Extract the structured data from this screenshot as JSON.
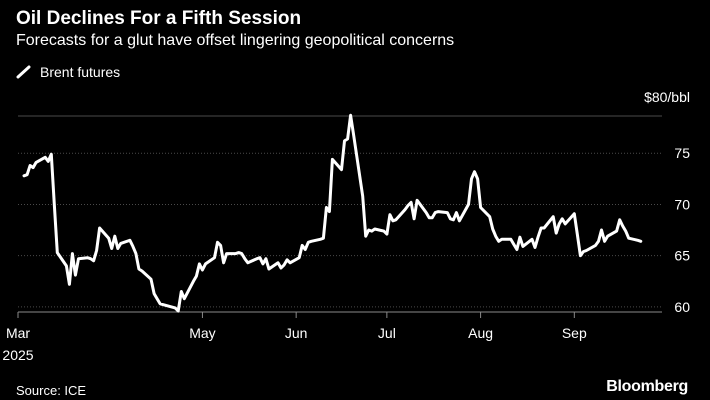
{
  "header": {
    "title": "Oil Declines For a Fifth Session",
    "subtitle": "Forecasts for a glut have offset lingering geopolitical concerns"
  },
  "footer": {
    "source": "Source: ICE",
    "brand": "Bloomberg"
  },
  "colors": {
    "background": "#000000",
    "line": "#ffffff",
    "grid": "#4a4a4a",
    "text": "#ffffff"
  },
  "chart_data": {
    "type": "line",
    "title": "Oil Declines For a Fifth Session",
    "subtitle": "Forecasts for a glut have offset lingering geopolitical concerns",
    "xlabel": "",
    "ylabel": "",
    "y_unit_label": "$80/bbl",
    "ylim": [
      59.5,
      80
    ],
    "yticks": [
      60,
      65,
      70,
      75
    ],
    "grid": true,
    "legend_position": "top-left",
    "x_axis": {
      "start": "2025-03-01",
      "end": "2025-09-30",
      "ticks": [
        {
          "date": "2025-03-01",
          "label": "Mar",
          "sublabel": "2025"
        },
        {
          "date": "2025-05-01",
          "label": "May"
        },
        {
          "date": "2025-06-01",
          "label": "Jun"
        },
        {
          "date": "2025-07-01",
          "label": "Jul"
        },
        {
          "date": "2025-08-01",
          "label": "Aug"
        },
        {
          "date": "2025-09-01",
          "label": "Sep"
        }
      ]
    },
    "series": [
      {
        "name": "Brent futures",
        "points": [
          [
            "2025-03-03",
            72.8
          ],
          [
            "2025-03-04",
            72.9
          ],
          [
            "2025-03-05",
            73.8
          ],
          [
            "2025-03-06",
            73.6
          ],
          [
            "2025-03-07",
            74.1
          ],
          [
            "2025-03-10",
            74.6
          ],
          [
            "2025-03-11",
            74.2
          ],
          [
            "2025-03-12",
            74.9
          ],
          [
            "2025-03-13",
            70.0
          ],
          [
            "2025-03-14",
            65.3
          ],
          [
            "2025-03-17",
            64.0
          ],
          [
            "2025-03-18",
            62.2
          ],
          [
            "2025-03-19",
            65.2
          ],
          [
            "2025-03-20",
            63.1
          ],
          [
            "2025-03-21",
            64.7
          ],
          [
            "2025-03-24",
            64.8
          ],
          [
            "2025-03-25",
            64.7
          ],
          [
            "2025-03-26",
            64.5
          ],
          [
            "2025-03-27",
            65.5
          ],
          [
            "2025-03-28",
            67.7
          ],
          [
            "2025-03-31",
            66.7
          ],
          [
            "2025-04-01",
            65.7
          ],
          [
            "2025-04-02",
            66.9
          ],
          [
            "2025-04-03",
            65.7
          ],
          [
            "2025-04-04",
            66.2
          ],
          [
            "2025-04-07",
            66.5
          ],
          [
            "2025-04-08",
            65.9
          ],
          [
            "2025-04-09",
            65.2
          ],
          [
            "2025-04-10",
            63.7
          ],
          [
            "2025-04-11",
            63.5
          ],
          [
            "2025-04-14",
            62.7
          ],
          [
            "2025-04-15",
            61.3
          ],
          [
            "2025-04-16",
            60.8
          ],
          [
            "2025-04-17",
            60.3
          ],
          [
            "2025-04-22",
            59.9
          ],
          [
            "2025-04-23",
            59.6
          ],
          [
            "2025-04-24",
            61.5
          ],
          [
            "2025-04-25",
            60.8
          ],
          [
            "2025-04-28",
            62.5
          ],
          [
            "2025-04-29",
            63.0
          ],
          [
            "2025-04-30",
            64.2
          ],
          [
            "2025-05-01",
            63.6
          ],
          [
            "2025-05-02",
            64.2
          ],
          [
            "2025-05-05",
            64.8
          ],
          [
            "2025-05-06",
            66.3
          ],
          [
            "2025-05-07",
            66.0
          ],
          [
            "2025-05-08",
            64.3
          ],
          [
            "2025-05-09",
            65.2
          ],
          [
            "2025-05-12",
            65.2
          ],
          [
            "2025-05-13",
            65.3
          ],
          [
            "2025-05-14",
            65.2
          ],
          [
            "2025-05-15",
            64.7
          ],
          [
            "2025-05-16",
            64.3
          ],
          [
            "2025-05-19",
            64.7
          ],
          [
            "2025-05-20",
            64.8
          ],
          [
            "2025-05-21",
            64.2
          ],
          [
            "2025-05-22",
            64.7
          ],
          [
            "2025-05-23",
            63.7
          ],
          [
            "2025-05-26",
            64.3
          ],
          [
            "2025-05-27",
            63.8
          ],
          [
            "2025-05-28",
            64.1
          ],
          [
            "2025-05-29",
            64.6
          ],
          [
            "2025-05-30",
            64.3
          ],
          [
            "2025-06-02",
            64.8
          ],
          [
            "2025-06-03",
            66.0
          ],
          [
            "2025-06-04",
            65.6
          ],
          [
            "2025-06-05",
            66.3
          ],
          [
            "2025-06-06",
            66.4
          ],
          [
            "2025-06-09",
            66.6
          ],
          [
            "2025-06-10",
            66.7
          ],
          [
            "2025-06-11",
            69.7
          ],
          [
            "2025-06-12",
            69.3
          ],
          [
            "2025-06-13",
            74.4
          ],
          [
            "2025-06-16",
            73.4
          ],
          [
            "2025-06-17",
            76.2
          ],
          [
            "2025-06-18",
            76.4
          ],
          [
            "2025-06-19",
            78.7
          ],
          [
            "2025-06-20",
            76.8
          ],
          [
            "2025-06-23",
            70.8
          ],
          [
            "2025-06-24",
            66.9
          ],
          [
            "2025-06-25",
            67.5
          ],
          [
            "2025-06-26",
            67.4
          ],
          [
            "2025-06-27",
            67.6
          ],
          [
            "2025-06-30",
            67.4
          ],
          [
            "2025-07-01",
            67.1
          ],
          [
            "2025-07-02",
            69.0
          ],
          [
            "2025-07-03",
            68.4
          ],
          [
            "2025-07-04",
            68.5
          ],
          [
            "2025-07-07",
            69.5
          ],
          [
            "2025-07-08",
            69.9
          ],
          [
            "2025-07-09",
            70.2
          ],
          [
            "2025-07-10",
            68.6
          ],
          [
            "2025-07-11",
            70.4
          ],
          [
            "2025-07-14",
            69.2
          ],
          [
            "2025-07-15",
            68.7
          ],
          [
            "2025-07-16",
            68.7
          ],
          [
            "2025-07-17",
            69.2
          ],
          [
            "2025-07-18",
            69.3
          ],
          [
            "2025-07-21",
            69.2
          ],
          [
            "2025-07-22",
            68.6
          ],
          [
            "2025-07-23",
            68.5
          ],
          [
            "2025-07-24",
            69.2
          ],
          [
            "2025-07-25",
            68.4
          ],
          [
            "2025-07-28",
            70.0
          ],
          [
            "2025-07-29",
            72.5
          ],
          [
            "2025-07-30",
            73.2
          ],
          [
            "2025-07-31",
            72.5
          ],
          [
            "2025-08-01",
            69.7
          ],
          [
            "2025-08-04",
            68.8
          ],
          [
            "2025-08-05",
            67.6
          ],
          [
            "2025-08-06",
            66.9
          ],
          [
            "2025-08-07",
            66.4
          ],
          [
            "2025-08-08",
            66.6
          ],
          [
            "2025-08-11",
            66.6
          ],
          [
            "2025-08-12",
            66.1
          ],
          [
            "2025-08-13",
            65.6
          ],
          [
            "2025-08-14",
            66.8
          ],
          [
            "2025-08-15",
            65.9
          ],
          [
            "2025-08-18",
            66.6
          ],
          [
            "2025-08-19",
            65.8
          ],
          [
            "2025-08-20",
            66.8
          ],
          [
            "2025-08-21",
            67.7
          ],
          [
            "2025-08-22",
            67.7
          ],
          [
            "2025-08-25",
            68.8
          ],
          [
            "2025-08-26",
            67.2
          ],
          [
            "2025-08-27",
            68.1
          ],
          [
            "2025-08-28",
            68.6
          ],
          [
            "2025-08-29",
            68.1
          ],
          [
            "2025-09-01",
            69.1
          ],
          [
            "2025-09-02",
            67.1
          ],
          [
            "2025-09-03",
            65.0
          ],
          [
            "2025-09-04",
            65.4
          ],
          [
            "2025-09-05",
            65.5
          ],
          [
            "2025-09-08",
            66.0
          ],
          [
            "2025-09-09",
            66.4
          ],
          [
            "2025-09-10",
            67.5
          ],
          [
            "2025-09-11",
            66.4
          ],
          [
            "2025-09-12",
            66.9
          ],
          [
            "2025-09-15",
            67.4
          ],
          [
            "2025-09-16",
            68.5
          ],
          [
            "2025-09-17",
            67.9
          ],
          [
            "2025-09-18",
            67.4
          ],
          [
            "2025-09-19",
            66.7
          ],
          [
            "2025-09-22",
            66.5
          ],
          [
            "2025-09-23",
            66.4
          ]
        ]
      }
    ]
  }
}
